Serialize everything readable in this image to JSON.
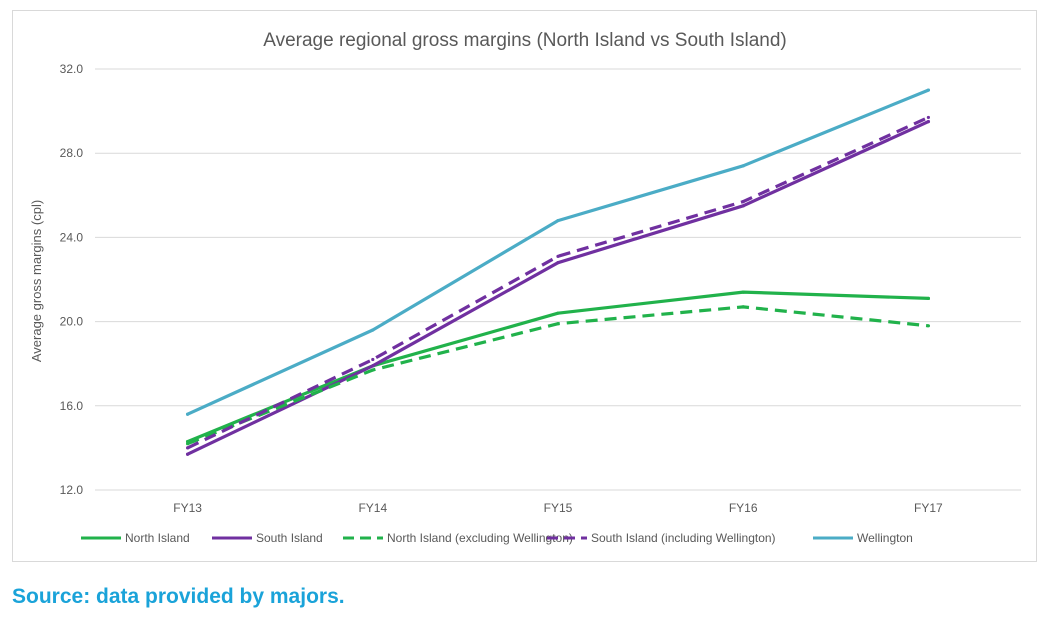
{
  "chart_data": {
    "type": "line",
    "title": "Average regional gross margins (North Island vs South Island)",
    "ylabel": "Average gross margins (cpl)",
    "xlabel": "",
    "categories": [
      "FY13",
      "FY14",
      "FY15",
      "FY16",
      "FY17"
    ],
    "ylim": [
      12.0,
      32.0
    ],
    "yticks": [
      "12.0",
      "16.0",
      "20.0",
      "24.0",
      "28.0",
      "32.0"
    ],
    "ytick_values": [
      12,
      16,
      20,
      24,
      28,
      32
    ],
    "grid": true,
    "legend_position": "bottom",
    "series": [
      {
        "name": "North Island",
        "color": "#21b24b",
        "dash": "solid",
        "values": [
          14.3,
          17.9,
          20.4,
          21.4,
          21.1
        ]
      },
      {
        "name": "South Island",
        "color": "#7030a0",
        "dash": "solid",
        "values": [
          13.7,
          17.9,
          22.8,
          25.5,
          29.5
        ]
      },
      {
        "name": "North Island (excluding Wellington)",
        "color": "#21b24b",
        "dash": "dashed",
        "values": [
          14.2,
          17.7,
          19.9,
          20.7,
          19.8
        ]
      },
      {
        "name": "South Island (including Wellington)",
        "color": "#7030a0",
        "dash": "dashed",
        "values": [
          14.0,
          18.2,
          23.1,
          25.7,
          29.7
        ]
      },
      {
        "name": "Wellington",
        "color": "#4bacc6",
        "dash": "solid",
        "values": [
          15.6,
          19.6,
          24.8,
          27.4,
          31.0
        ]
      }
    ]
  },
  "source_note": "Source: data provided by majors."
}
